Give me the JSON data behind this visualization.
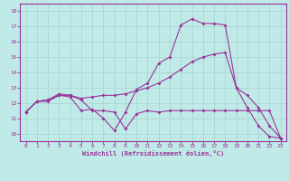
{
  "xlabel": "Windchill (Refroidissement éolien,°C)",
  "xlim": [
    -0.5,
    23.5
  ],
  "ylim": [
    9.5,
    18.5
  ],
  "xticks": [
    0,
    1,
    2,
    3,
    4,
    5,
    6,
    7,
    8,
    9,
    10,
    11,
    12,
    13,
    14,
    15,
    16,
    17,
    18,
    19,
    20,
    21,
    22,
    23
  ],
  "yticks": [
    10,
    11,
    12,
    13,
    14,
    15,
    16,
    17,
    18
  ],
  "bg_color": "#c0eae8",
  "grid_color": "#a8d8d4",
  "line_color": "#993399",
  "line1_x": [
    0,
    1,
    2,
    3,
    4,
    5,
    6,
    7,
    8,
    9,
    10,
    11,
    12,
    13,
    14,
    15,
    16,
    17,
    18,
    19,
    20,
    21,
    22,
    23
  ],
  "line1_y": [
    11.4,
    12.1,
    12.1,
    12.5,
    12.5,
    12.2,
    11.5,
    11.5,
    11.4,
    10.3,
    11.3,
    11.5,
    11.4,
    11.5,
    11.5,
    11.5,
    11.5,
    11.5,
    11.5,
    11.5,
    11.5,
    11.5,
    11.5,
    9.7
  ],
  "line2_x": [
    0,
    1,
    2,
    3,
    4,
    5,
    6,
    7,
    8,
    9,
    10,
    11,
    12,
    13,
    14,
    15,
    16,
    17,
    18,
    19,
    20,
    21,
    22,
    23
  ],
  "line2_y": [
    11.4,
    12.1,
    12.2,
    12.5,
    12.4,
    11.5,
    11.6,
    11.0,
    10.2,
    11.4,
    12.9,
    13.3,
    14.6,
    15.0,
    17.1,
    17.5,
    17.2,
    17.2,
    17.1,
    13.0,
    11.7,
    10.5,
    9.8,
    9.7
  ],
  "line3_x": [
    0,
    1,
    2,
    3,
    4,
    5,
    6,
    7,
    8,
    9,
    10,
    11,
    12,
    13,
    14,
    15,
    16,
    17,
    18,
    19,
    20,
    21,
    22,
    23
  ],
  "line3_y": [
    11.4,
    12.1,
    12.2,
    12.6,
    12.5,
    12.3,
    12.4,
    12.5,
    12.5,
    12.6,
    12.8,
    13.0,
    13.3,
    13.7,
    14.2,
    14.7,
    15.0,
    15.2,
    15.3,
    13.0,
    12.5,
    11.7,
    10.5,
    9.7
  ]
}
